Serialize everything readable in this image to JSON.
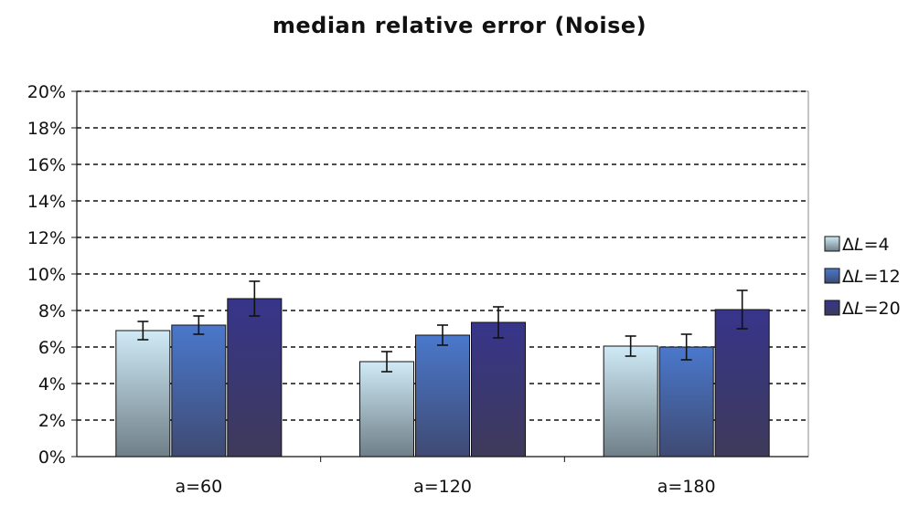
{
  "chart_data": {
    "type": "bar",
    "title": "median relative error (Noise)",
    "categories": [
      "a=60",
      "a=120",
      "a=180"
    ],
    "series": [
      {
        "name": "ΔL=4",
        "legend_delta": "Δ",
        "legend_var": "L",
        "legend_rest": "=4",
        "values": [
          6.9,
          5.2,
          6.05
        ],
        "error": [
          0.5,
          0.55,
          0.55
        ],
        "gradient": [
          "#cfeaf6",
          "#6f7f88"
        ]
      },
      {
        "name": "ΔL=12",
        "legend_delta": "Δ",
        "legend_var": "L",
        "legend_rest": "=12",
        "values": [
          7.2,
          6.65,
          6.0
        ],
        "error": [
          0.5,
          0.55,
          0.7
        ],
        "gradient": [
          "#4a78cc",
          "#3f4a72"
        ]
      },
      {
        "name": "ΔL=20",
        "legend_delta": "Δ",
        "legend_var": "L",
        "legend_rest": "=20",
        "values": [
          8.65,
          7.35,
          8.05
        ],
        "error": [
          0.95,
          0.85,
          1.05
        ],
        "gradient": [
          "#37358a",
          "#3e3a5a"
        ]
      }
    ],
    "y_ticks": [
      "0%",
      "2%",
      "4%",
      "6%",
      "8%",
      "10%",
      "12%",
      "14%",
      "16%",
      "18%",
      "20%"
    ],
    "ylim": [
      0,
      20
    ],
    "y_unit": "%",
    "grid": "horizontal-dashed",
    "legend_position": "right"
  }
}
